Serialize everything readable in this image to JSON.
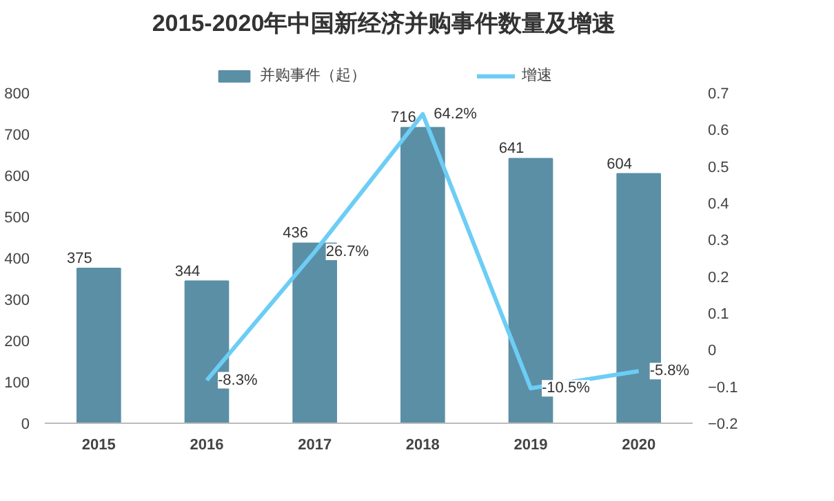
{
  "chart_data": {
    "type": "bar",
    "title": "2015-2020年中国新经济并购事件数量及增速",
    "categories": [
      "2015",
      "2016",
      "2017",
      "2018",
      "2019",
      "2020"
    ],
    "series": [
      {
        "name": "并购事件（起）",
        "color": "#5b8fa6",
        "values": [
          375,
          344,
          436,
          716,
          641,
          604
        ],
        "data_labels": true
      },
      {
        "name": "增速",
        "type": "line",
        "axis": "y2",
        "color": "#6ccdf5",
        "values": [
          null,
          -0.083,
          0.267,
          0.642,
          -0.105,
          -0.058
        ],
        "value_labels": [
          null,
          "-8.3%",
          "26.7%",
          "64.2%",
          "-10.5%",
          "-5.8%"
        ]
      }
    ],
    "ylim": [
      0,
      800
    ],
    "yticks": [
      0,
      100,
      200,
      300,
      400,
      500,
      600,
      700,
      800
    ],
    "y2lim": [
      -0.2,
      0.7
    ],
    "y2ticks": [
      -0.2,
      -0.1,
      0,
      0.1,
      0.2,
      0.3,
      0.4,
      0.5,
      0.6,
      0.7
    ],
    "grid": false,
    "legend": "top",
    "marker": "none",
    "line_style": "solid"
  }
}
